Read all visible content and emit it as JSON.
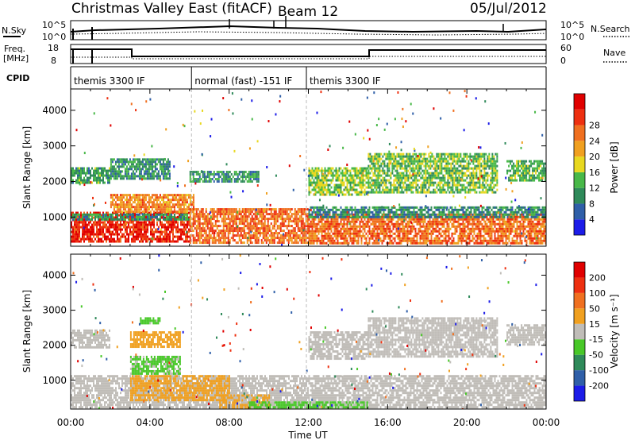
{
  "header": {
    "title": "Christmas Valley East (fitACF)",
    "beam": "Beam 12",
    "date": "05/Jul/2012"
  },
  "strip_labels": {
    "nsky": "N.Sky",
    "nsky_scale_top": "10^5",
    "nsky_scale_bottom": "10^0",
    "nsearch": "N.Search",
    "freq": "Freq.",
    "freq_unit": "[MHz]",
    "freq_scale_top": "18",
    "freq_scale_bottom": "8",
    "nave": "Nave",
    "nave_scale_top": "60",
    "nave_scale_bottom": "0",
    "cpid": "CPID"
  },
  "cpid_segments": [
    {
      "label": "themis 3300 IF",
      "start": 0,
      "end": 6.1
    },
    {
      "label": "normal (fast) -151 IF",
      "start": 6.1,
      "end": 11.9
    },
    {
      "label": "themis 3300 IF",
      "start": 11.9,
      "end": 24
    }
  ],
  "x_axis": {
    "label": "Time UT",
    "ticks": [
      "00:00",
      "04:00",
      "08:00",
      "12:00",
      "16:00",
      "20:00",
      "00:00"
    ]
  },
  "power_colorbar": {
    "label": "Power [dB]",
    "ticks": [
      "4",
      "8",
      "12",
      "16",
      "20",
      "24",
      "28"
    ],
    "colors": [
      "#1c1ce8",
      "#2f5fa8",
      "#2f8a5a",
      "#48b848",
      "#e8d820",
      "#f0a020",
      "#f07020",
      "#ee3010",
      "#e00000"
    ]
  },
  "velocity_colorbar": {
    "label": "Velocity [m s⁻¹]",
    "ticks": [
      "200",
      "100",
      "50",
      "15",
      "-15",
      "-50",
      "-100",
      "-200"
    ],
    "colors": [
      "#1c1ce8",
      "#2f5fa8",
      "#2f8a5a",
      "#48c828",
      "#c0bdb8",
      "#f0a020",
      "#f07020",
      "#ee3010",
      "#e00000"
    ]
  },
  "chart_data": [
    {
      "type": "heatmap",
      "panel": "power",
      "ylabel": "Slant Range [km]",
      "xlabel": "Time UT",
      "xlim": [
        0,
        24
      ],
      "ylim": [
        180,
        4600
      ],
      "y_ticks": [
        1000,
        2000,
        3000,
        4000
      ],
      "colorbar": "Power [dB]",
      "clim": [
        0,
        30
      ],
      "regions": [
        {
          "t0": 0.0,
          "t1": 6.0,
          "r0": 280,
          "r1": 1150,
          "value": 26
        },
        {
          "t0": 0.0,
          "t1": 6.0,
          "r0": 900,
          "r1": 1100,
          "value": 9
        },
        {
          "t0": 2.0,
          "t1": 6.2,
          "r0": 1150,
          "r1": 1650,
          "value": 20
        },
        {
          "t0": 0.0,
          "t1": 2.0,
          "r0": 1950,
          "r1": 2400,
          "value": 10
        },
        {
          "t0": 2.0,
          "t1": 5.0,
          "r0": 2050,
          "r1": 2650,
          "value": 9
        },
        {
          "t0": 6.0,
          "t1": 12.0,
          "r0": 280,
          "r1": 1250,
          "value": 22
        },
        {
          "t0": 6.0,
          "t1": 9.5,
          "r0": 2000,
          "r1": 2300,
          "value": 9
        },
        {
          "t0": 12.0,
          "t1": 15.0,
          "r0": 1650,
          "r1": 2400,
          "value": 13
        },
        {
          "t0": 12.0,
          "t1": 24.0,
          "r0": 250,
          "r1": 1100,
          "value": 22
        },
        {
          "t0": 12.0,
          "t1": 24.0,
          "r0": 1000,
          "r1": 1300,
          "value": 8
        },
        {
          "t0": 15.0,
          "t1": 21.5,
          "r0": 1700,
          "r1": 2800,
          "value": 12
        },
        {
          "t0": 22.0,
          "t1": 24.0,
          "r0": 2000,
          "r1": 2600,
          "value": 11
        }
      ]
    },
    {
      "type": "heatmap",
      "panel": "velocity",
      "ylabel": "Slant Range [km]",
      "xlabel": "Time UT",
      "xlim": [
        0,
        24
      ],
      "ylim": [
        180,
        4600
      ],
      "y_ticks": [
        1000,
        2000,
        3000,
        4000
      ],
      "colorbar": "Velocity [m s⁻¹]",
      "clim": [
        -250,
        250
      ],
      "regions": [
        {
          "t0": 0.0,
          "t1": 12.0,
          "r0": 250,
          "r1": 1150,
          "value": 0
        },
        {
          "t0": 3.0,
          "t1": 8.0,
          "r0": 450,
          "r1": 1150,
          "value": 40
        },
        {
          "t0": 7.5,
          "t1": 10.0,
          "r0": 250,
          "r1": 600,
          "value": 35
        },
        {
          "t0": 12.0,
          "t1": 24.0,
          "r0": 250,
          "r1": 1150,
          "value": 0
        },
        {
          "t0": 9.0,
          "t1": 15.0,
          "r0": 180,
          "r1": 400,
          "value": -40
        },
        {
          "t0": 3.0,
          "t1": 5.5,
          "r0": 1200,
          "r1": 1700,
          "value": -35
        },
        {
          "t0": 3.0,
          "t1": 5.5,
          "r0": 1950,
          "r1": 2400,
          "value": 60
        },
        {
          "t0": 3.5,
          "t1": 4.5,
          "r0": 2600,
          "r1": 2800,
          "value": -40
        },
        {
          "t0": 0.0,
          "t1": 2.0,
          "r0": 1950,
          "r1": 2450,
          "value": 0
        },
        {
          "t0": 12.0,
          "t1": 15.0,
          "r0": 1650,
          "r1": 2400,
          "value": 0
        },
        {
          "t0": 15.0,
          "t1": 21.5,
          "r0": 1700,
          "r1": 2800,
          "value": 0
        },
        {
          "t0": 22.0,
          "t1": 24.0,
          "r0": 2000,
          "r1": 2600,
          "value": 0
        }
      ]
    }
  ]
}
